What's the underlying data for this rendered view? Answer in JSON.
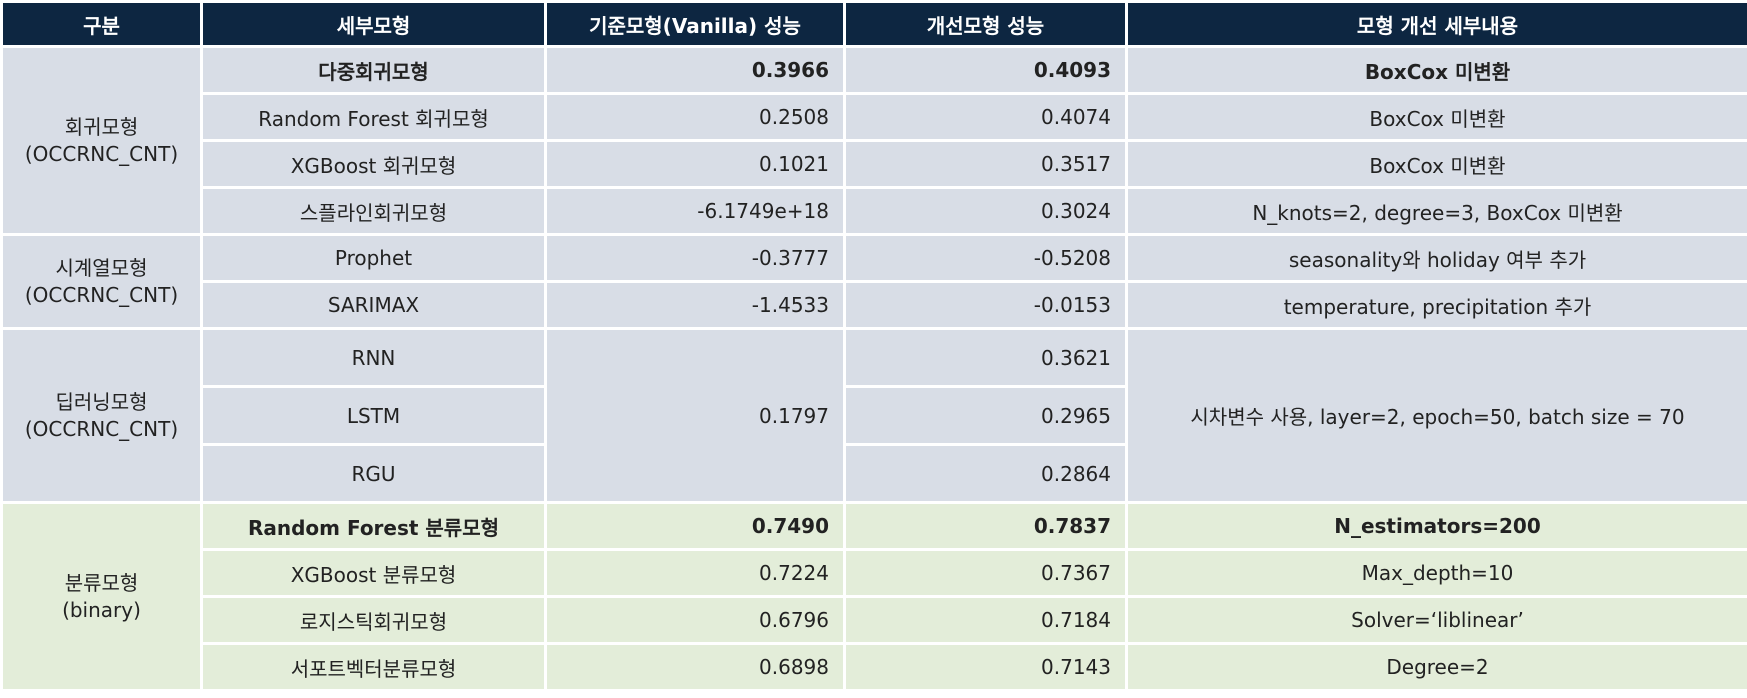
{
  "header": {
    "col1": "구분",
    "col2": "세부모형",
    "col3": "기준모형(Vanilla) 성능",
    "col4": "개선모형 성능",
    "col5": "모형 개선 세부내용"
  },
  "groups": {
    "regression": "회귀모형\n(OCCRNC_CNT)",
    "timeseries": "시계열모형\n(OCCRNC_CNT)",
    "deeplearning": "딥러닝모형\n(OCCRNC_CNT)",
    "classification": "분류모형\n(binary)"
  },
  "rows": [
    {
      "model": "다중회귀모형",
      "baseline": "0.3966",
      "improved": "0.4093",
      "details": "BoxCox 미변환"
    },
    {
      "model": "Random Forest 회귀모형",
      "baseline": "0.2508",
      "improved": "0.4074",
      "details": "BoxCox 미변환"
    },
    {
      "model": "XGBoost 회귀모형",
      "baseline": "0.1021",
      "improved": "0.3517",
      "details": "BoxCox 미변환"
    },
    {
      "model": "스플라인회귀모형",
      "baseline": "-6.1749e+18",
      "improved": "0.3024",
      "details": "N_knots=2, degree=3, BoxCox 미변환"
    },
    {
      "model": "Prophet",
      "baseline": "-0.3777",
      "improved": "-0.5208",
      "details": "seasonality와 holiday 여부 추가"
    },
    {
      "model": "SARIMAX",
      "baseline": "-1.4533",
      "improved": "-0.0153",
      "details": "temperature, precipitation 추가"
    },
    {
      "model": "RNN",
      "baseline": "0.1797",
      "improved": "0.3621",
      "details": "시차변수 사용, layer=2, epoch=50, batch size = 70"
    },
    {
      "model": "LSTM",
      "improved": "0.2965"
    },
    {
      "model": "RGU",
      "improved": "0.2864"
    },
    {
      "model": "Random Forest 분류모형",
      "baseline": "0.7490",
      "improved": "0.7837",
      "details": "N_estimators=200"
    },
    {
      "model": "XGBoost 분류모형",
      "baseline": "0.7224",
      "improved": "0.7367",
      "details": "Max_depth=10"
    },
    {
      "model": "로지스틱회귀모형",
      "baseline": "0.6796",
      "improved": "0.7184",
      "details": "Solver=‘liblinear’"
    },
    {
      "model": "서포트벡터분류모형",
      "baseline": "0.6898",
      "improved": "0.7143",
      "details": "Degree=2"
    }
  ],
  "colors": {
    "header_bg": "#0d2641",
    "header_text": "#ffffff",
    "section_bg_blue": "#d8dde6",
    "section_bg_green": "#e3edd9"
  }
}
